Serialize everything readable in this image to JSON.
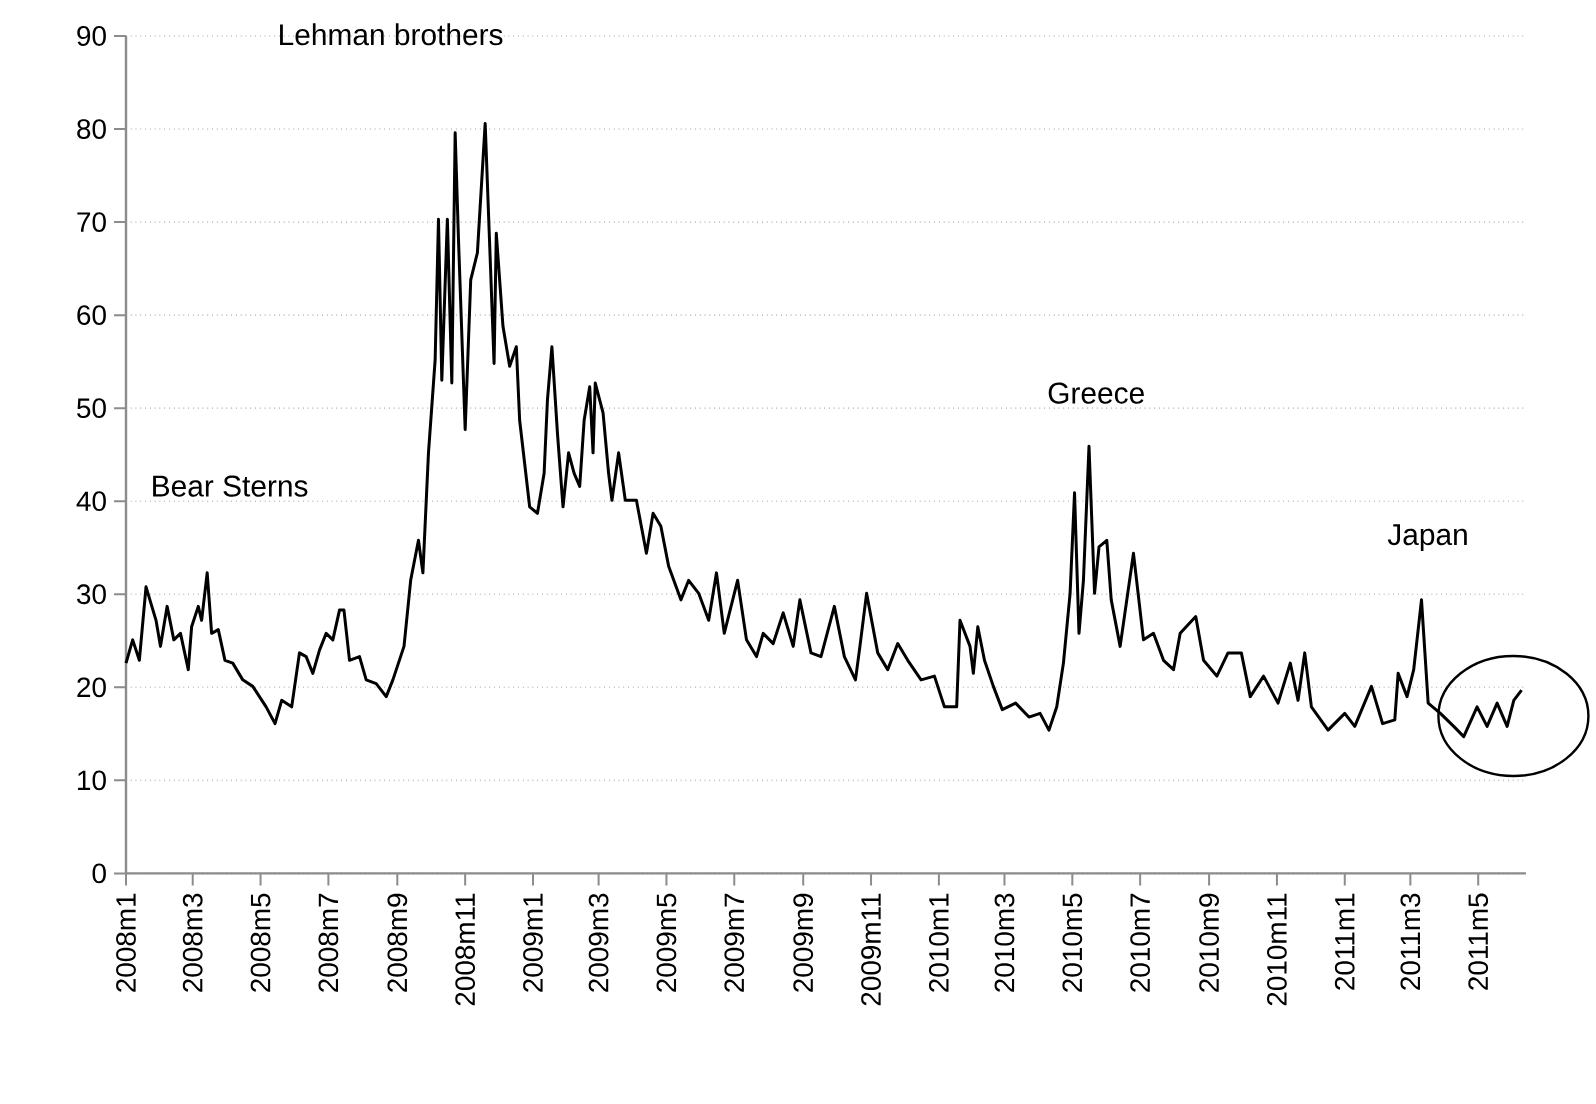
{
  "chart_data": {
    "type": "line",
    "x": [
      "2008-01-01",
      "2008-01-07",
      "2008-01-13",
      "2008-01-19",
      "2008-01-28",
      "2008-02-01",
      "2008-02-07",
      "2008-02-13",
      "2008-02-19",
      "2008-02-26",
      "2008-02-29",
      "2008-03-06",
      "2008-03-09",
      "2008-03-14",
      "2008-03-18",
      "2008-03-24",
      "2008-03-30",
      "2008-04-06",
      "2008-04-15",
      "2008-04-24",
      "2008-05-06",
      "2008-05-14",
      "2008-05-20",
      "2008-05-29",
      "2008-06-05",
      "2008-06-11",
      "2008-06-17",
      "2008-06-23",
      "2008-06-29",
      "2008-07-05",
      "2008-07-11",
      "2008-07-15",
      "2008-07-20",
      "2008-07-29",
      "2008-08-04",
      "2008-08-13",
      "2008-08-22",
      "2008-08-28",
      "2008-09-07",
      "2008-09-13",
      "2008-09-20",
      "2008-09-24",
      "2008-09-29",
      "2008-10-05",
      "2008-10-08",
      "2008-10-11",
      "2008-10-16",
      "2008-10-20",
      "2008-10-23",
      "2008-10-26",
      "2008-11-01",
      "2008-11-06",
      "2008-11-12",
      "2008-11-19",
      "2008-11-27",
      "2008-11-29",
      "2008-12-05",
      "2008-12-11",
      "2008-12-17",
      "2008-12-20",
      "2008-12-29",
      "2009-01-05",
      "2009-01-11",
      "2009-01-14",
      "2009-01-18",
      "2009-01-23",
      "2009-01-28",
      "2009-02-02",
      "2009-02-07",
      "2009-02-12",
      "2009-02-16",
      "2009-02-21",
      "2009-02-24",
      "2009-02-26",
      "2009-03-05",
      "2009-03-10",
      "2009-03-13",
      "2009-03-19",
      "2009-03-25",
      "2009-04-04",
      "2009-04-13",
      "2009-04-19",
      "2009-04-26",
      "2009-05-03",
      "2009-05-14",
      "2009-05-21",
      "2009-05-30",
      "2009-06-08",
      "2009-06-15",
      "2009-06-22",
      "2009-07-04",
      "2009-07-12",
      "2009-07-21",
      "2009-07-27",
      "2009-08-05",
      "2009-08-14",
      "2009-08-23",
      "2009-08-29",
      "2009-09-08",
      "2009-09-17",
      "2009-09-29",
      "2009-10-08",
      "2009-10-18",
      "2009-10-22",
      "2009-10-28",
      "2009-11-07",
      "2009-11-16",
      "2009-11-25",
      "2009-12-04",
      "2009-12-16",
      "2009-12-28",
      "2010-01-06",
      "2010-01-17",
      "2010-01-20",
      "2010-01-29",
      "2010-02-01",
      "2010-02-05",
      "2010-02-11",
      "2010-02-19",
      "2010-02-27",
      "2010-03-11",
      "2010-03-23",
      "2010-04-02",
      "2010-04-10",
      "2010-04-17",
      "2010-04-23",
      "2010-04-29",
      "2010-05-03",
      "2010-05-07",
      "2010-05-11",
      "2010-05-16",
      "2010-05-21",
      "2010-05-25",
      "2010-06-01",
      "2010-06-05",
      "2010-06-13",
      "2010-06-19",
      "2010-06-25",
      "2010-07-04",
      "2010-07-13",
      "2010-07-22",
      "2010-07-31",
      "2010-08-06",
      "2010-08-20",
      "2010-08-27",
      "2010-09-08",
      "2010-09-18",
      "2010-09-30",
      "2010-10-08",
      "2010-10-20",
      "2010-11-02",
      "2010-11-13",
      "2010-11-20",
      "2010-11-26",
      "2010-12-02",
      "2010-12-17",
      "2011-01-01",
      "2011-01-10",
      "2011-01-25",
      "2011-02-04",
      "2011-02-15",
      "2011-02-18",
      "2011-02-26",
      "2011-03-04",
      "2011-03-11",
      "2011-03-17",
      "2011-03-28",
      "2011-04-09",
      "2011-04-18",
      "2011-04-30",
      "2011-05-09",
      "2011-05-18",
      "2011-05-27",
      "2011-06-02",
      "2011-06-09"
    ],
    "series": [
      {
        "color": "#000000",
        "values": [
          22.6,
          25.1,
          22.9,
          30.8,
          27.2,
          24.4,
          28.7,
          25.1,
          25.8,
          21.9,
          26.5,
          28.7,
          27.2,
          32.3,
          25.8,
          26.2,
          22.9,
          22.6,
          20.8,
          20.1,
          17.9,
          16.1,
          18.6,
          17.9,
          23.7,
          23.3,
          21.5,
          24.0,
          25.8,
          25.1,
          28.3,
          28.3,
          22.9,
          23.3,
          20.8,
          20.4,
          19.0,
          20.8,
          24.4,
          31.5,
          35.8,
          32.3,
          45.2,
          55.2,
          70.3,
          53.0,
          70.3,
          52.7,
          79.6,
          68.1,
          47.7,
          63.8,
          66.7,
          80.6,
          54.8,
          68.8,
          58.8,
          54.5,
          56.6,
          48.7,
          39.4,
          38.7,
          43.0,
          50.9,
          56.6,
          47.3,
          39.4,
          45.2,
          43.0,
          41.6,
          48.7,
          52.3,
          45.2,
          52.7,
          49.5,
          43.0,
          40.1,
          45.2,
          40.1,
          40.1,
          34.4,
          38.7,
          37.3,
          33.0,
          29.4,
          31.5,
          30.1,
          27.2,
          32.3,
          25.8,
          31.5,
          25.1,
          23.3,
          25.8,
          24.7,
          28.0,
          24.4,
          29.4,
          23.7,
          23.3,
          28.7,
          23.3,
          20.8,
          24.4,
          30.1,
          23.7,
          21.9,
          24.7,
          22.9,
          20.8,
          21.2,
          17.9,
          17.9,
          27.2,
          24.4,
          21.5,
          26.5,
          22.9,
          20.1,
          17.6,
          18.3,
          16.8,
          17.2,
          15.4,
          17.9,
          22.6,
          30.1,
          40.9,
          25.8,
          31.5,
          45.9,
          30.1,
          35.1,
          35.8,
          29.4,
          24.4,
          29.4,
          34.4,
          25.1,
          25.8,
          22.9,
          21.9,
          25.8,
          27.6,
          22.9,
          21.2,
          23.7,
          23.7,
          19.0,
          21.2,
          18.3,
          22.6,
          18.6,
          23.7,
          17.9,
          15.4,
          17.2,
          15.8,
          20.1,
          16.1,
          16.5,
          21.5,
          19.0,
          21.9,
          29.4,
          18.3,
          17.2,
          15.8,
          14.7,
          17.9,
          15.8,
          18.3,
          15.8,
          18.6,
          19.7
        ]
      }
    ],
    "xlim": [
      "2008-01-01",
      "2011-06-13"
    ],
    "xticks": [
      {
        "value": "2008-01-01",
        "label": "2008m1"
      },
      {
        "value": "2008-03-01",
        "label": "2008m3"
      },
      {
        "value": "2008-05-01",
        "label": "2008m5"
      },
      {
        "value": "2008-07-01",
        "label": "2008m7"
      },
      {
        "value": "2008-09-01",
        "label": "2008m9"
      },
      {
        "value": "2008-11-01",
        "label": "2008m11"
      },
      {
        "value": "2009-01-01",
        "label": "2009m1"
      },
      {
        "value": "2009-03-01",
        "label": "2009m3"
      },
      {
        "value": "2009-05-01",
        "label": "2009m5"
      },
      {
        "value": "2009-07-01",
        "label": "2009m7"
      },
      {
        "value": "2009-09-01",
        "label": "2009m9"
      },
      {
        "value": "2009-11-01",
        "label": "2009m11"
      },
      {
        "value": "2010-01-01",
        "label": "2010m1"
      },
      {
        "value": "2010-03-01",
        "label": "2010m3"
      },
      {
        "value": "2010-05-01",
        "label": "2010m5"
      },
      {
        "value": "2010-07-01",
        "label": "2010m7"
      },
      {
        "value": "2010-09-01",
        "label": "2010m9"
      },
      {
        "value": "2010-11-01",
        "label": "2010m11"
      },
      {
        "value": "2011-01-01",
        "label": "2011m1"
      },
      {
        "value": "2011-03-01",
        "label": "2011m3"
      },
      {
        "value": "2011-05-01",
        "label": "2011m5"
      }
    ],
    "ylim": [
      0,
      90
    ],
    "yticks": [
      0,
      10,
      20,
      30,
      40,
      50,
      60,
      70,
      80,
      90
    ],
    "grid": "y",
    "annotations": [
      "Bear Sterns",
      "Lehman brothers",
      "Greece",
      "Japan"
    ]
  }
}
